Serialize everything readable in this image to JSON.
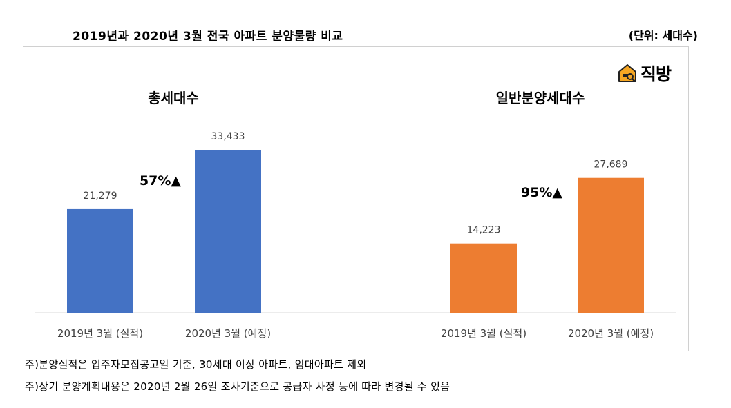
{
  "header": {
    "title": "2019년과 2020년 3월 전국 아파트 분양물량 비교",
    "unit": "(단위: 세대수)"
  },
  "logo": {
    "text": "직방",
    "icon": "house-search-icon"
  },
  "notes": [
    "주)분양실적은 입주자모집공고일 기준, 30세대 이상 아파트, 임대아파트 제외",
    "주)상기 분양계획내용은 2020년 2월 26일 조사기준으로 공급자 사정 등에 따라 변경될 수 있음"
  ],
  "colors": {
    "blue": "#4472C4",
    "orange": "#ED7D31",
    "axis": "#d9d9d9"
  },
  "chart_data": [
    {
      "type": "bar",
      "title": "총세대수",
      "categories": [
        "2019년 3월 (실적)",
        "2020년 3월 (예정)"
      ],
      "values": [
        21279,
        33433
      ],
      "value_labels": [
        "21,279",
        "33,433"
      ],
      "change_label": "57%▲",
      "color": "#4472C4",
      "ylim": [
        0,
        38000
      ],
      "grid": false,
      "legend": "none"
    },
    {
      "type": "bar",
      "title": "일반분양세대수",
      "categories": [
        "2019년 3월 (실적)",
        "2020년 3월 (예정)"
      ],
      "values": [
        14223,
        27689
      ],
      "value_labels": [
        "14,223",
        "27,689"
      ],
      "change_label": "95%▲",
      "color": "#ED7D31",
      "ylim": [
        0,
        38000
      ],
      "grid": false,
      "legend": "none"
    }
  ]
}
